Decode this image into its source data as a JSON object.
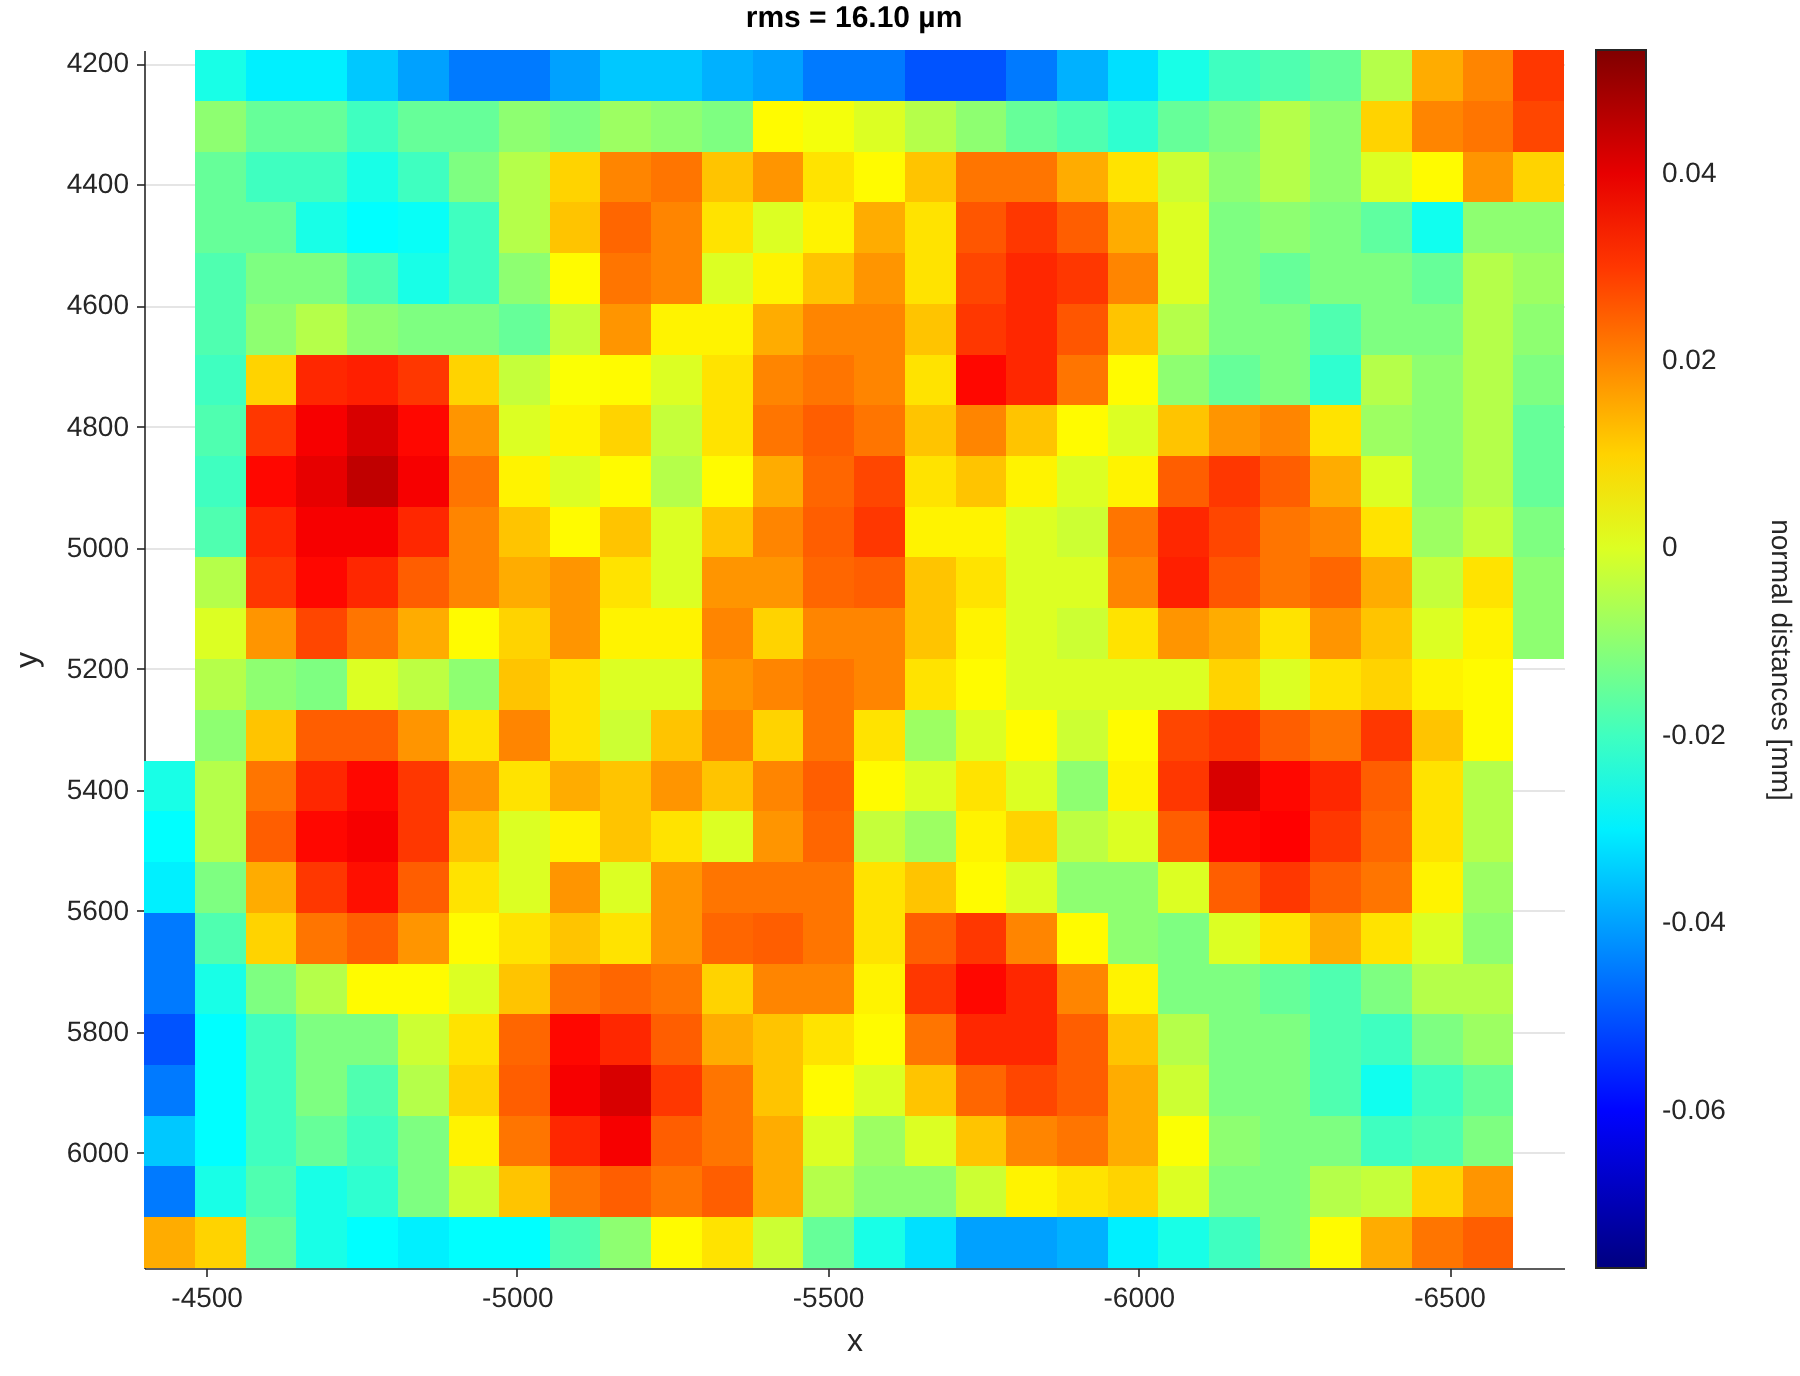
{
  "chart_data": {
    "type": "heatmap",
    "title": "rms = 16.10 µm",
    "xlabel": "x",
    "ylabel": "y",
    "clabel": "normal distances [mm]",
    "x": [
      -4441,
      -4523,
      -4604,
      -4686,
      -4767,
      -4849,
      -4931,
      -5012,
      -5094,
      -5175,
      -5257,
      -5339,
      -5420,
      -5502,
      -5583,
      -5665,
      -5747,
      -5828,
      -5910,
      -5991,
      -6073,
      -6155,
      -6236,
      -6318,
      -6399,
      -6481,
      -6563,
      -6644
    ],
    "y": [
      4220,
      4304,
      4388,
      4471,
      4555,
      4639,
      4723,
      4807,
      4891,
      4974,
      5058,
      5142,
      5226,
      5310,
      5394,
      5477,
      5561,
      5645,
      5729,
      5813,
      5897,
      5980,
      6064,
      6148
    ],
    "xlim": [
      -4400,
      -6685
    ],
    "xticks": [
      -4500,
      -5000,
      -5500,
      -6000,
      -6500
    ],
    "ylim": [
      6190,
      4178
    ],
    "yticks": [
      4200,
      4400,
      4600,
      4800,
      5000,
      5200,
      5400,
      5600,
      5800,
      6000
    ],
    "clim": [
      -0.0768,
      0.0532
    ],
    "cticks": [
      -0.06,
      -0.04,
      -0.02,
      0,
      0.02,
      0.04
    ],
    "grid": true,
    "cells": [
      [
        null,
        -0.025,
        -0.03,
        -0.03,
        -0.035,
        -0.04,
        -0.045,
        -0.045,
        -0.04,
        -0.035,
        -0.035,
        -0.038,
        -0.04,
        -0.045,
        -0.045,
        -0.05,
        -0.05,
        -0.045,
        -0.038,
        -0.032,
        -0.025,
        -0.02,
        -0.018,
        -0.015,
        -0.005,
        0.015,
        0.02,
        0.03
      ],
      [
        null,
        -0.01,
        -0.015,
        -0.015,
        -0.02,
        -0.015,
        -0.015,
        -0.01,
        -0.012,
        -0.008,
        -0.01,
        -0.012,
        0.005,
        0.003,
        0,
        -0.005,
        -0.01,
        -0.015,
        -0.018,
        -0.022,
        -0.015,
        -0.012,
        -0.005,
        -0.01,
        0.01,
        0.02,
        0.022,
        0.028
      ],
      [
        null,
        -0.015,
        -0.02,
        -0.02,
        -0.025,
        -0.02,
        -0.012,
        -0.005,
        0.01,
        0.02,
        0.022,
        0.012,
        0.018,
        0.008,
        0.005,
        0.012,
        0.022,
        0.022,
        0.015,
        0.008,
        -0.002,
        -0.01,
        -0.005,
        -0.01,
        0,
        0.005,
        0.018,
        0.01
      ],
      [
        null,
        -0.015,
        -0.015,
        -0.025,
        -0.028,
        -0.027,
        -0.02,
        -0.005,
        0.012,
        0.024,
        0.02,
        0.008,
        0,
        0.006,
        0.015,
        0.008,
        0.026,
        0.03,
        0.025,
        0.015,
        0,
        -0.012,
        -0.01,
        -0.012,
        -0.016,
        -0.026,
        -0.01,
        -0.01
      ],
      [
        null,
        -0.018,
        -0.012,
        -0.012,
        -0.018,
        -0.025,
        -0.02,
        -0.01,
        0.005,
        0.022,
        0.02,
        0,
        0.006,
        0.012,
        0.018,
        0.008,
        0.028,
        0.032,
        0.03,
        0.02,
        0,
        -0.012,
        -0.015,
        -0.012,
        -0.012,
        -0.015,
        -0.005,
        -0.008
      ],
      [
        null,
        -0.018,
        -0.01,
        -0.005,
        -0.01,
        -0.012,
        -0.012,
        -0.015,
        -0.003,
        0.018,
        0.006,
        0.006,
        0.015,
        0.02,
        0.02,
        0.012,
        0.03,
        0.032,
        0.026,
        0.012,
        -0.005,
        -0.012,
        -0.012,
        -0.018,
        -0.012,
        -0.012,
        -0.005,
        -0.01
      ],
      [
        null,
        -0.02,
        0.01,
        0.032,
        0.033,
        0.03,
        0.01,
        -0.003,
        0.004,
        0.005,
        0,
        0.008,
        0.02,
        0.022,
        0.02,
        0.008,
        0.036,
        0.032,
        0.022,
        0.005,
        -0.01,
        -0.015,
        -0.012,
        -0.022,
        -0.005,
        -0.01,
        -0.005,
        -0.012
      ],
      [
        null,
        -0.018,
        0.03,
        0.038,
        0.042,
        0.036,
        0.018,
        0,
        0.006,
        0.01,
        -0.003,
        0.008,
        0.022,
        0.025,
        0.022,
        0.012,
        0.02,
        0.012,
        0.005,
        0,
        0.012,
        0.018,
        0.02,
        0.008,
        -0.008,
        -0.01,
        -0.005,
        -0.015
      ],
      [
        null,
        -0.02,
        0.036,
        0.04,
        0.045,
        0.038,
        0.022,
        0.006,
        0,
        0.005,
        -0.005,
        0.005,
        0.015,
        0.024,
        0.028,
        0.008,
        0.012,
        0.006,
        0,
        0.006,
        0.025,
        0.03,
        0.025,
        0.015,
        0,
        -0.01,
        -0.005,
        -0.015
      ],
      [
        null,
        -0.018,
        0.032,
        0.038,
        0.038,
        0.032,
        0.02,
        0.012,
        0.005,
        0.012,
        0,
        0.012,
        0.02,
        0.025,
        0.03,
        0.006,
        0.006,
        0,
        -0.002,
        0.022,
        0.032,
        0.028,
        0.022,
        0.02,
        0.008,
        -0.008,
        -0.003,
        -0.012
      ],
      [
        null,
        -0.005,
        0.03,
        0.036,
        0.032,
        0.025,
        0.02,
        0.015,
        0.018,
        0.008,
        0,
        0.018,
        0.018,
        0.024,
        0.025,
        0.012,
        0.008,
        0,
        0,
        0.02,
        0.033,
        0.026,
        0.022,
        0.024,
        0.015,
        -0.003,
        0.008,
        -0.01
      ],
      [
        null,
        0,
        0.018,
        0.028,
        0.022,
        0.015,
        0.005,
        0.01,
        0.018,
        0.006,
        0.006,
        0.02,
        0.01,
        0.02,
        0.02,
        0.012,
        0.006,
        0,
        -0.002,
        0.008,
        0.018,
        0.015,
        0.008,
        0.018,
        0.012,
        0,
        0.006,
        -0.01
      ],
      [
        null,
        -0.005,
        -0.01,
        -0.012,
        0,
        -0.004,
        -0.01,
        0.012,
        0.008,
        0,
        0,
        0.018,
        0.02,
        0.022,
        0.02,
        0.008,
        0.005,
        0,
        0,
        0,
        0,
        0.01,
        0,
        0.008,
        0.01,
        0.006,
        0.005,
        null
      ],
      [
        null,
        -0.01,
        0.012,
        0.025,
        0.025,
        0.018,
        0.008,
        0.02,
        0.008,
        -0.002,
        0.012,
        0.02,
        0.01,
        0.022,
        0.008,
        -0.008,
        0,
        0.005,
        -0.002,
        0.005,
        0.028,
        0.03,
        0.025,
        0.022,
        0.03,
        0.012,
        0.005,
        null
      ],
      [
        -0.025,
        -0.005,
        0.022,
        0.032,
        0.036,
        0.03,
        0.018,
        0.008,
        0.015,
        0.012,
        0.018,
        0.012,
        0.02,
        0.025,
        0.005,
        0,
        0.008,
        0,
        -0.01,
        0.006,
        0.03,
        0.042,
        0.036,
        0.032,
        0.025,
        0.008,
        -0.005,
        null
      ],
      [
        -0.028,
        -0.005,
        0.025,
        0.036,
        0.038,
        0.03,
        0.012,
        0,
        0.006,
        0.012,
        0.008,
        0,
        0.018,
        0.024,
        -0.003,
        -0.008,
        0.006,
        0.01,
        -0.004,
        0,
        0.025,
        0.036,
        0.037,
        0.03,
        0.024,
        0.008,
        -0.005,
        null
      ],
      [
        -0.03,
        -0.012,
        0.015,
        0.03,
        0.035,
        0.025,
        0.008,
        0,
        0.018,
        0,
        0.018,
        0.022,
        0.022,
        0.022,
        0.008,
        0.012,
        0.005,
        0,
        -0.01,
        -0.01,
        0,
        0.025,
        0.03,
        0.025,
        0.022,
        0.006,
        -0.008,
        null
      ],
      [
        -0.045,
        -0.018,
        0.01,
        0.022,
        0.025,
        0.018,
        0.005,
        0.008,
        0.012,
        0.008,
        0.018,
        0.024,
        0.025,
        0.022,
        0.008,
        0.025,
        0.03,
        0.02,
        0.005,
        -0.01,
        -0.012,
        0,
        0.008,
        0.015,
        0.008,
        0,
        -0.01,
        null
      ],
      [
        -0.045,
        -0.025,
        -0.012,
        -0.005,
        0.005,
        0.005,
        0,
        0.012,
        0.022,
        0.024,
        0.022,
        0.01,
        0.02,
        0.02,
        0.006,
        0.03,
        0.036,
        0.032,
        0.02,
        0.006,
        -0.012,
        -0.012,
        -0.015,
        -0.018,
        -0.012,
        -0.005,
        -0.005,
        null
      ],
      [
        -0.05,
        -0.028,
        -0.02,
        -0.012,
        -0.012,
        -0.002,
        0.008,
        0.024,
        0.036,
        0.032,
        0.025,
        0.015,
        0.012,
        0.008,
        0.005,
        0.022,
        0.032,
        0.032,
        0.025,
        0.012,
        -0.005,
        -0.012,
        -0.012,
        -0.018,
        -0.02,
        -0.012,
        -0.008,
        null
      ],
      [
        -0.045,
        -0.028,
        -0.02,
        -0.012,
        -0.018,
        -0.005,
        0.01,
        0.025,
        0.038,
        0.042,
        0.03,
        0.022,
        0.012,
        0.005,
        0,
        0.012,
        0.024,
        0.028,
        0.025,
        0.015,
        -0.002,
        -0.012,
        -0.012,
        -0.018,
        -0.026,
        -0.02,
        -0.015,
        null
      ],
      [
        -0.035,
        -0.028,
        -0.02,
        -0.015,
        -0.02,
        -0.012,
        0.006,
        0.022,
        0.032,
        0.038,
        0.025,
        0.022,
        0.015,
        0,
        -0.008,
        0,
        0.012,
        0.02,
        0.022,
        0.015,
        0.004,
        -0.01,
        -0.012,
        -0.012,
        -0.02,
        -0.018,
        -0.012,
        null
      ],
      [
        -0.045,
        -0.025,
        -0.018,
        -0.025,
        -0.022,
        -0.012,
        -0.002,
        0.012,
        0.022,
        0.025,
        0.022,
        0.025,
        0.015,
        -0.005,
        -0.01,
        -0.01,
        -0.002,
        0.006,
        0.008,
        0.01,
        0,
        -0.012,
        -0.012,
        -0.005,
        -0.003,
        0.01,
        0.018,
        null
      ],
      [
        0.015,
        0.01,
        -0.015,
        -0.025,
        -0.028,
        -0.03,
        -0.028,
        -0.028,
        -0.018,
        -0.01,
        0.005,
        0.008,
        -0.002,
        -0.015,
        -0.025,
        -0.032,
        -0.04,
        -0.04,
        -0.038,
        -0.03,
        -0.025,
        -0.02,
        -0.012,
        0.005,
        0.015,
        0.022,
        0.025,
        null
      ]
    ]
  }
}
